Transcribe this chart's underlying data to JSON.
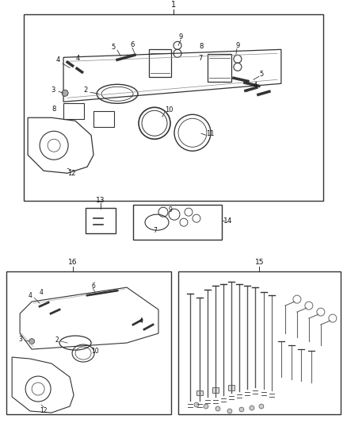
{
  "bg_color": "#ffffff",
  "lc": "#333333",
  "fig_width": 4.38,
  "fig_height": 5.33,
  "dpi": 100
}
